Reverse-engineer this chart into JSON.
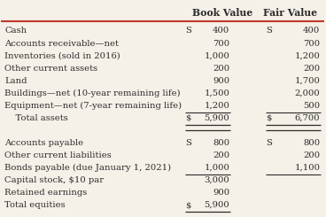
{
  "title_row": [
    "",
    "Book Value",
    "Fair Value"
  ],
  "rows": [
    [
      "Cash",
      "S  400",
      "S  400"
    ],
    [
      "Accounts receivable—net",
      "700",
      "700"
    ],
    [
      "Inventories (sold in 2016)",
      "1,000",
      "1,200"
    ],
    [
      "Other current assets",
      "200",
      "200"
    ],
    [
      "Land",
      "900",
      "1,700"
    ],
    [
      "Buildings—net (10-year remaining life)",
      "1,500",
      "2,000"
    ],
    [
      "Equipment—net (7-year remaining life)",
      "1,200",
      "500"
    ],
    [
      "    Total assets",
      "$5,900",
      "$6,700"
    ],
    [
      "",
      "",
      ""
    ],
    [
      "Accounts payable",
      "S 800",
      "S  800"
    ],
    [
      "Other current liabilities",
      "200",
      "200"
    ],
    [
      "Bonds payable (due January 1, 2021)",
      "1,000",
      "1,100"
    ],
    [
      "Capital stock, $10 par",
      "3,000",
      ""
    ],
    [
      "Retained earnings",
      "900",
      ""
    ],
    [
      "Total equities",
      "$5,900",
      ""
    ]
  ],
  "double_underline_rows": [
    7,
    14
  ],
  "underline_rows": [
    6,
    11
  ],
  "header_line_color": "#c0392b",
  "bg_color": "#f5f0e8",
  "text_color": "#2c2c2c",
  "font_size": 7.2,
  "header_font_size": 7.8
}
